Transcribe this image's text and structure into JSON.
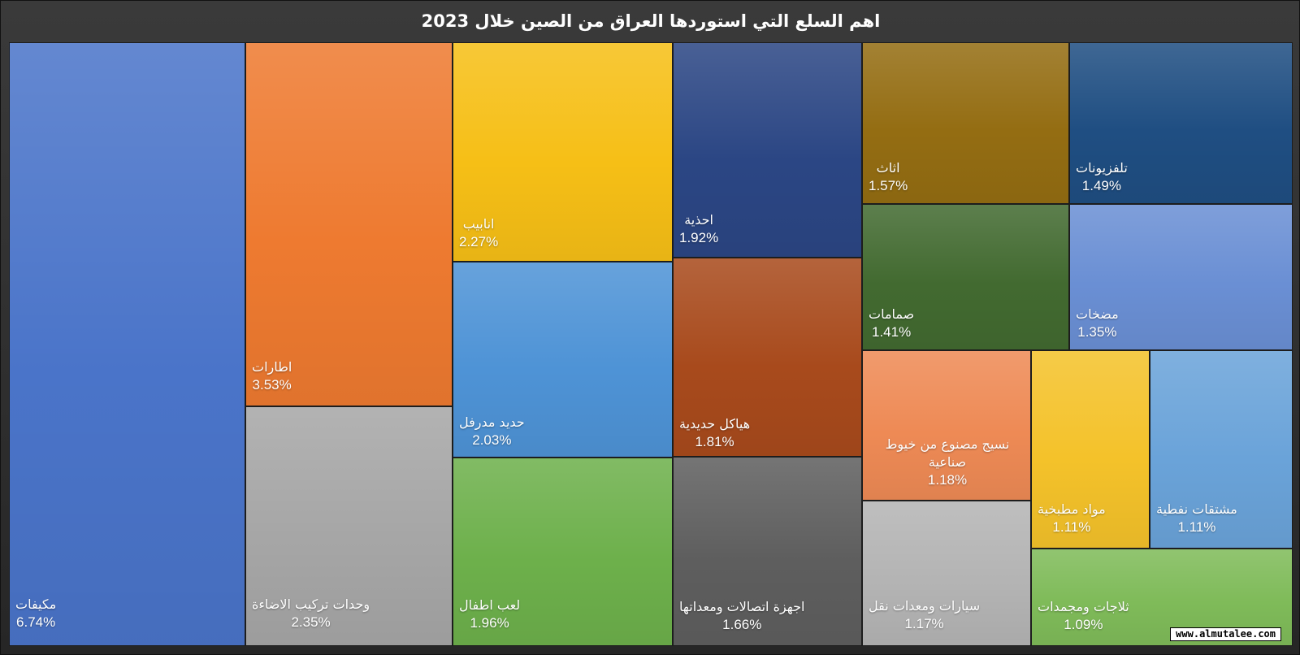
{
  "chart_data": {
    "type": "treemap",
    "title": "اهم السلع التي استوردها العراق من الصين خلال 2023",
    "items": [
      {
        "name": "مكيفات",
        "value": 6.74,
        "value_label": "6.74%",
        "color": "#4a74c9"
      },
      {
        "name": "اطارات",
        "value": 3.53,
        "value_label": "3.53%",
        "color": "#ee7a30"
      },
      {
        "name": "وحدات تركيب الاضاءة",
        "value": 2.35,
        "value_label": "2.35%",
        "color": "#a6a6a6"
      },
      {
        "name": "انابيب",
        "value": 2.27,
        "value_label": "2.27%",
        "color": "#f6bf16"
      },
      {
        "name": "حديد مدرفل",
        "value": 2.03,
        "value_label": "2.03%",
        "color": "#4e93d6"
      },
      {
        "name": "لعب اطفال",
        "value": 1.96,
        "value_label": "1.96%",
        "color": "#6db04b"
      },
      {
        "name": "احذية",
        "value": 1.92,
        "value_label": "1.92%",
        "color": "#2b4684"
      },
      {
        "name": "هياكل حديدية",
        "value": 1.81,
        "value_label": "1.81%",
        "color": "#a84a1c"
      },
      {
        "name": "اجهزة اتصالات ومعداتها",
        "value": 1.66,
        "value_label": "1.66%",
        "color": "#5e5e5e"
      },
      {
        "name": "اثاث",
        "value": 1.57,
        "value_label": "1.57%",
        "color": "#946d12"
      },
      {
        "name": "تلفزيونات",
        "value": 1.49,
        "value_label": "1.49%",
        "color": "#1f4e82"
      },
      {
        "name": "صمامات",
        "value": 1.41,
        "value_label": "1.41%",
        "color": "#426a30"
      },
      {
        "name": "مضخات",
        "value": 1.35,
        "value_label": "1.35%",
        "color": "#6a8fd4"
      },
      {
        "name": "نسيج مصنوع من خيوط صناعية",
        "value": 1.18,
        "value_label": "1.18%",
        "color": "#ee8a55"
      },
      {
        "name": "سيارات ومعدات نقل",
        "value": 1.17,
        "value_label": "1.17%",
        "color": "#b4b4b4"
      },
      {
        "name": "مواد مطبخية",
        "value": 1.11,
        "value_label": "1.11%",
        "color": "#f4c22a"
      },
      {
        "name": "مشتقات نفطية",
        "value": 1.11,
        "value_label": "1.11%",
        "color": "#6aa3d9"
      },
      {
        "name": "ثلاجات ومجمدات",
        "value": 1.09,
        "value_label": "1.09%",
        "color": "#7fbb59"
      }
    ]
  },
  "watermark": "www.almutalee.com"
}
